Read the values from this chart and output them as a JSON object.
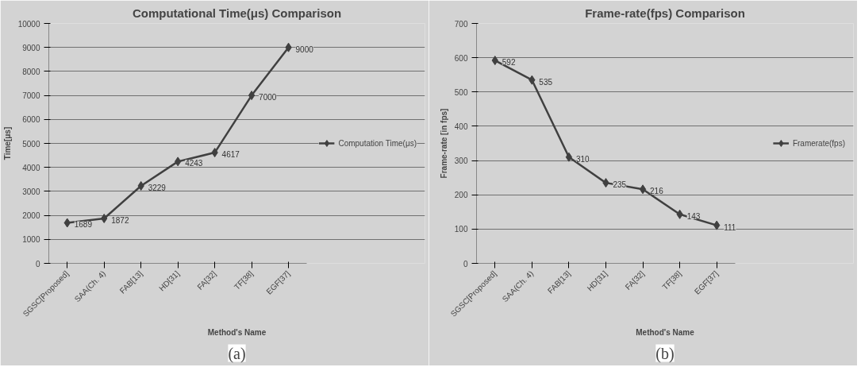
{
  "chart_data": [
    {
      "type": "line",
      "title": "Computational Time(μs) Comparison",
      "xlabel": "Method's Name",
      "ylabel": "Time[μs]",
      "categories": [
        "SGSC[Proposed]",
        "SAA(Ch. 4)",
        "FAB[13]",
        "HD[31]",
        "FA[32]",
        "TF[38]",
        "EGF[37]"
      ],
      "series": [
        {
          "name": "Computation Time(μs)",
          "color": "#404040",
          "values": [
            1689,
            1872,
            3229,
            4243,
            4617,
            7000,
            9000
          ]
        }
      ],
      "ylim": [
        0,
        10000
      ],
      "yticks": [
        0,
        1000,
        2000,
        3000,
        4000,
        5000,
        6000,
        7000,
        8000,
        9000,
        10000
      ],
      "grid": "y",
      "legend": "right",
      "marker": "diamond",
      "line_style": "solid",
      "data_labels": true,
      "annotations": [
        "(a)"
      ]
    },
    {
      "type": "line",
      "title": "Frame-rate(fps) Comparison",
      "xlabel": "Method's Name",
      "ylabel": "Frame-rate [in fps]",
      "categories": [
        "SGSC[Proposed]",
        "SAA(Ch. 4)",
        "FAB[13]",
        "HD[31]",
        "FA[32]",
        "TF[38]",
        "EGF[37]"
      ],
      "series": [
        {
          "name": "Framerate(fps)",
          "color": "#404040",
          "values": [
            592,
            535,
            310,
            235,
            216,
            143,
            111
          ]
        }
      ],
      "ylim": [
        0,
        700
      ],
      "yticks": [
        0,
        100,
        200,
        300,
        400,
        500,
        600,
        700
      ],
      "grid": "y",
      "legend": "right",
      "marker": "diamond",
      "line_style": "solid",
      "data_labels": true,
      "annotations": [
        "(b)"
      ]
    }
  ]
}
